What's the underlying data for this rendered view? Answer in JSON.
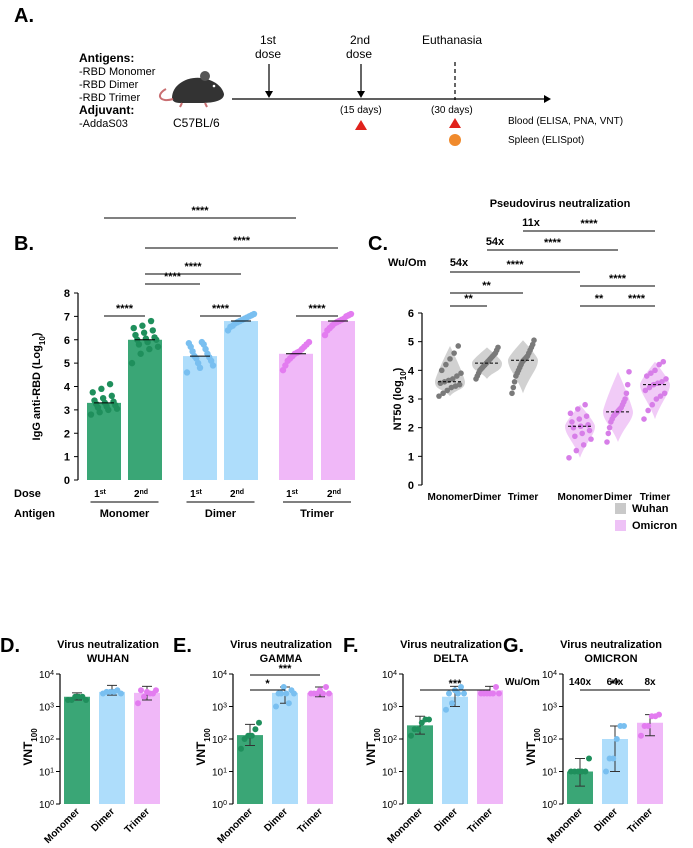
{
  "colors": {
    "monomer": "#3aa676",
    "dimer": "#aeddfb",
    "dimer_dot": "#79bff0",
    "trimer": "#f0b8f8",
    "trimer_dot": "#e37cf0",
    "wuhan": "#a9a9a9",
    "wuhan_dot": "#7a7a7a",
    "omicron": "#eec2f6",
    "omicron_dot": "#d77ee8",
    "red": "#e0221c",
    "orange": "#f08a2c"
  },
  "panelA": {
    "letter": "A.",
    "antigens_title": "Antigens:",
    "antigens": [
      "-RBD Monomer",
      "-RBD Dimer",
      "-RBD Trimer"
    ],
    "adjuvant_title": "Adjuvant:",
    "adjuvant": "-AddaS03",
    "mouse_label": "C57BL/6",
    "dose1": [
      "1st",
      "dose"
    ],
    "dose2": [
      "2nd",
      "dose"
    ],
    "euthanasia": "Euthanasia",
    "days15": "(15 days)",
    "days30": "(30 days)",
    "blood": "Blood (ELISA, PNA, VNT)",
    "spleen": "Spleen (ELISpot)"
  },
  "chart_data": [
    {
      "id": "B",
      "type": "bar",
      "letter": "B.",
      "ylabel": "IgG anti-RBD (Log",
      "ylabel_sub": "10",
      "ylim": [
        0,
        8
      ],
      "yticks": [
        "0",
        "1",
        "2",
        "3",
        "4",
        "5",
        "6",
        "7",
        "8"
      ],
      "row_labels": {
        "dose": "Dose",
        "antigen": "Antigen"
      },
      "groups": [
        "Monomer",
        "Dimer",
        "Trimer"
      ],
      "dose_labels": [
        {
          "base": "1",
          "sup": "st"
        },
        {
          "base": "2",
          "sup": "nd"
        }
      ],
      "bars": [
        {
          "group": "Monomer",
          "dose": "1st",
          "mean": 3.3,
          "points": [
            2.8,
            2.9,
            3.0,
            3.05,
            3.1,
            3.15,
            3.2,
            3.25,
            3.3,
            3.35,
            3.4,
            3.5,
            3.6,
            3.75,
            3.9,
            4.1
          ]
        },
        {
          "group": "Monomer",
          "dose": "2nd",
          "mean": 6.0,
          "points": [
            5.0,
            5.4,
            5.6,
            5.7,
            5.8,
            5.9,
            6.0,
            6.0,
            6.05,
            6.1,
            6.2,
            6.3,
            6.4,
            6.5,
            6.6,
            6.8
          ]
        },
        {
          "group": "Dimer",
          "dose": "1st",
          "mean": 5.3,
          "points": [
            4.6,
            4.8,
            4.9,
            5.0,
            5.1,
            5.2,
            5.25,
            5.3,
            5.4,
            5.5,
            5.6,
            5.7,
            5.8,
            5.85,
            5.9
          ]
        },
        {
          "group": "Dimer",
          "dose": "2nd",
          "mean": 6.8,
          "points": [
            6.4,
            6.55,
            6.6,
            6.7,
            6.75,
            6.8,
            6.85,
            6.9,
            6.95,
            7.0,
            7.05,
            7.1
          ]
        },
        {
          "group": "Trimer",
          "dose": "1st",
          "mean": 5.4,
          "points": [
            4.7,
            4.9,
            5.1,
            5.2,
            5.3,
            5.4,
            5.45,
            5.5,
            5.6,
            5.7,
            5.8,
            5.9
          ]
        },
        {
          "group": "Trimer",
          "dose": "2nd",
          "mean": 6.8,
          "points": [
            6.2,
            6.4,
            6.5,
            6.6,
            6.7,
            6.75,
            6.8,
            6.85,
            6.9,
            7.0,
            7.05,
            7.1
          ]
        }
      ],
      "significance": [
        {
          "from": 0,
          "to": 1,
          "label": "****"
        },
        {
          "from": 2,
          "to": 3,
          "label": "****"
        },
        {
          "from": 4,
          "to": 5,
          "label": "****"
        },
        {
          "from": 1,
          "to": 3,
          "label": "****"
        },
        {
          "from": 1,
          "to": 3,
          "label": "****",
          "level": 2
        },
        {
          "from": 1,
          "to": 5,
          "label": "****"
        },
        {
          "from": 0,
          "to": 4,
          "label": "****"
        }
      ]
    },
    {
      "id": "C",
      "type": "violin",
      "letter": "C.",
      "title": "Pseudovirus neutralization",
      "ylabel": "NT50 (log",
      "ylabel_sub": "10",
      "ylim": [
        0,
        6
      ],
      "yticks": [
        "0",
        "1",
        "2",
        "3",
        "4",
        "5",
        "6"
      ],
      "ratio_label": "Wu/Om",
      "ratios": [
        "54x",
        "54x",
        "11x"
      ],
      "groups": [
        {
          "label": "Monomer",
          "series": "Wuhan",
          "median": 3.6,
          "points": [
            3.1,
            3.2,
            3.3,
            3.4,
            3.45,
            3.5,
            3.55,
            3.6,
            3.65,
            3.7,
            3.8,
            3.9,
            4.0,
            4.2,
            4.4,
            4.6,
            4.85
          ]
        },
        {
          "label": "Dimer",
          "series": "Wuhan",
          "median": 4.25,
          "points": [
            3.7,
            3.8,
            3.9,
            4.0,
            4.05,
            4.1,
            4.15,
            4.2,
            4.25,
            4.3,
            4.35,
            4.4,
            4.45,
            4.5,
            4.55,
            4.6,
            4.7,
            4.8
          ]
        },
        {
          "label": "Trimer",
          "series": "Wuhan",
          "median": 4.35,
          "points": [
            3.2,
            3.4,
            3.6,
            3.8,
            3.9,
            4.0,
            4.1,
            4.2,
            4.3,
            4.35,
            4.4,
            4.45,
            4.5,
            4.6,
            4.7,
            4.8,
            4.9,
            5.05
          ]
        },
        {
          "label": "Monomer",
          "series": "Omicron",
          "median": 2.05,
          "points": [
            0.95,
            1.2,
            1.4,
            1.6,
            1.7,
            1.8,
            1.9,
            2.0,
            2.05,
            2.1,
            2.2,
            2.3,
            2.4,
            2.5,
            2.65,
            2.8
          ]
        },
        {
          "label": "Dimer",
          "series": "Omicron",
          "median": 2.55,
          "points": [
            1.5,
            1.8,
            2.0,
            2.2,
            2.3,
            2.4,
            2.45,
            2.5,
            2.55,
            2.6,
            2.65,
            2.7,
            2.8,
            2.9,
            3.0,
            3.2,
            3.5,
            3.95
          ]
        },
        {
          "label": "Trimer",
          "series": "Omicron",
          "median": 3.5,
          "points": [
            2.3,
            2.6,
            2.8,
            3.0,
            3.1,
            3.2,
            3.3,
            3.4,
            3.5,
            3.55,
            3.6,
            3.7,
            3.8,
            3.9,
            4.0,
            4.2,
            4.3
          ]
        }
      ],
      "significance": [
        {
          "from": 0,
          "to": 1,
          "label": "**"
        },
        {
          "from": 0,
          "to": 2,
          "label": "**"
        },
        {
          "from": 3,
          "to": 4,
          "label": "**"
        },
        {
          "from": 4,
          "to": 5,
          "label": "****"
        },
        {
          "from": 3,
          "to": 5,
          "label": "****"
        },
        {
          "from": 0,
          "to": 3,
          "label": "****"
        },
        {
          "from": 1,
          "to": 4,
          "label": "****"
        },
        {
          "from": 2,
          "to": 5,
          "label": "****"
        }
      ],
      "legend": [
        {
          "label": "Wuhan",
          "series": "Wuhan"
        },
        {
          "label": "Omicron",
          "series": "Omicron"
        }
      ]
    },
    {
      "id": "D",
      "type": "bar",
      "letter": "D.",
      "title": [
        "Virus neutralization",
        "WUHAN"
      ],
      "ylabel": "VNT",
      "ylabel_sub": "100",
      "ylog": [
        0,
        4
      ],
      "categories": [
        "Monomer",
        "Dimer",
        "Trimer"
      ],
      "bars": [
        {
          "mean": 3.3,
          "err": [
            3.2,
            3.42
          ],
          "points": [
            3.2,
            3.2,
            3.3,
            3.3,
            3.3,
            3.2
          ]
        },
        {
          "mean": 3.45,
          "err": [
            3.35,
            3.65
          ],
          "points": [
            3.4,
            3.45,
            3.45,
            3.45,
            3.5,
            3.4
          ]
        },
        {
          "mean": 3.42,
          "err": [
            3.2,
            3.62
          ],
          "points": [
            3.1,
            3.3,
            3.4,
            3.5,
            3.5,
            3.45,
            3.4
          ]
        }
      ],
      "significance": []
    },
    {
      "id": "E",
      "type": "bar",
      "letter": "E.",
      "title": [
        "Virus neutralization",
        "GAMMA"
      ],
      "ylabel": "VNT",
      "ylabel_sub": "100",
      "ylog": [
        0,
        4
      ],
      "categories": [
        "Monomer",
        "Dimer",
        "Trimer"
      ],
      "bars": [
        {
          "mean": 2.12,
          "err": [
            1.8,
            2.45
          ],
          "points": [
            1.7,
            2.0,
            2.1,
            2.1,
            2.3,
            2.5
          ]
        },
        {
          "mean": 3.42,
          "err": [
            3.1,
            3.6
          ],
          "points": [
            3.0,
            3.1,
            3.4,
            3.4,
            3.4,
            3.4,
            3.5,
            3.6
          ]
        },
        {
          "mean": 3.42,
          "err": [
            3.3,
            3.6
          ],
          "points": [
            3.4,
            3.4,
            3.4,
            3.4,
            3.4,
            3.5,
            3.6
          ]
        }
      ],
      "significance": [
        {
          "from": 0,
          "to": 1,
          "label": "*"
        },
        {
          "from": 0,
          "to": 2,
          "label": "***"
        }
      ]
    },
    {
      "id": "F",
      "type": "bar",
      "letter": "F.",
      "title": [
        "Virus neutralization",
        "DELTA"
      ],
      "ylabel": "VNT",
      "ylabel_sub": "100",
      "ylog": [
        0,
        4
      ],
      "categories": [
        "Monomer",
        "Dimer",
        "Trimer"
      ],
      "bars": [
        {
          "mean": 2.42,
          "err": [
            2.15,
            2.7
          ],
          "points": [
            2.1,
            2.3,
            2.3,
            2.5,
            2.6,
            2.6
          ]
        },
        {
          "mean": 3.3,
          "err": [
            3.0,
            3.62
          ],
          "points": [
            2.9,
            3.1,
            3.4,
            3.4,
            3.4,
            3.5,
            3.6
          ]
        },
        {
          "mean": 3.5,
          "err": [
            3.4,
            3.62
          ],
          "points": [
            3.4,
            3.4,
            3.4,
            3.4,
            3.4,
            3.4,
            3.6
          ]
        }
      ],
      "significance": [
        {
          "from": 0,
          "to": 2,
          "label": "***"
        }
      ]
    },
    {
      "id": "G",
      "type": "bar",
      "letter": "G.",
      "title": [
        "Virus neutralization",
        "OMICRON"
      ],
      "ylabel": "VNT",
      "ylabel_sub": "100",
      "ylog": [
        0,
        4
      ],
      "ratio_label": "Wu/Om",
      "ratios": [
        "140x",
        "64x",
        "8x"
      ],
      "categories": [
        "Monomer",
        "Dimer",
        "Trimer"
      ],
      "bars": [
        {
          "mean": 1.0,
          "err": [
            0.55,
            1.4
          ],
          "points": [
            1.0,
            1.0,
            1.0,
            1.0,
            1.0,
            1.4
          ]
        },
        {
          "mean": 2.0,
          "err": [
            1.0,
            2.4
          ],
          "points": [
            1.0,
            1.4,
            1.4,
            2.0,
            2.4,
            2.4
          ]
        },
        {
          "mean": 2.5,
          "err": [
            2.1,
            2.75
          ],
          "points": [
            2.1,
            2.4,
            2.4,
            2.7,
            2.7,
            2.75
          ]
        }
      ],
      "significance": [
        {
          "from": 0,
          "to": 2,
          "label": "**"
        }
      ]
    }
  ]
}
